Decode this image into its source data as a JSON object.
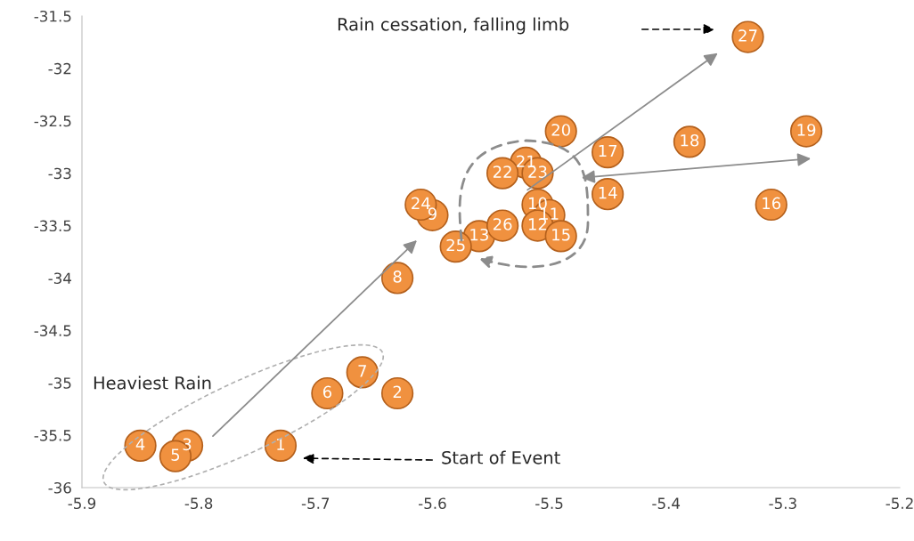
{
  "chart_data": {
    "type": "scatter",
    "x": [
      -5.73,
      -5.63,
      -5.81,
      -5.85,
      -5.82,
      -5.69,
      -5.66,
      -5.63,
      -5.6,
      -5.51,
      -5.5,
      -5.51,
      -5.56,
      -5.45,
      -5.49,
      -5.31,
      -5.45,
      -5.38,
      -5.28,
      -5.49,
      -5.52,
      -5.54,
      -5.51,
      -5.61,
      -5.58,
      -5.54,
      -5.33
    ],
    "values": [
      -35.6,
      -35.1,
      -35.6,
      -35.6,
      -35.7,
      -35.1,
      -34.9,
      -34.0,
      -33.4,
      -33.3,
      -33.4,
      -33.5,
      -33.6,
      -33.2,
      -33.6,
      -33.3,
      -32.8,
      -32.7,
      -32.6,
      -32.6,
      -32.9,
      -33.0,
      -33.0,
      -33.3,
      -33.7,
      -33.5,
      -31.7
    ],
    "color": "#f0913f",
    "marker": "circle",
    "xlim": [
      -5.9,
      -5.2
    ],
    "xticks": [
      -5.9,
      -5.8,
      -5.7,
      -5.6,
      -5.5,
      -5.4,
      -5.3,
      -5.2
    ],
    "ylim": [
      -36,
      -31.5
    ],
    "yticks": [
      -36,
      -35.5,
      -35,
      -34.5,
      -34,
      -33.5,
      -33,
      -32.5,
      -32,
      -31.5
    ],
    "grid": false,
    "annotations": [
      "Rain cessation, falling limb",
      "Start of Event",
      "Heaviest Rain",
      {
        "text": "1",
        "x": -5.73,
        "y": -35.6
      },
      {
        "text": "2",
        "x": -5.63,
        "y": -35.1
      },
      {
        "text": "3",
        "x": -5.81,
        "y": -35.6
      },
      {
        "text": "4",
        "x": -5.85,
        "y": -35.6
      },
      {
        "text": "5",
        "x": -5.82,
        "y": -35.7
      },
      {
        "text": "6",
        "x": -5.69,
        "y": -35.1
      },
      {
        "text": "7",
        "x": -5.66,
        "y": -34.9
      },
      {
        "text": "8",
        "x": -5.63,
        "y": -34.0
      },
      {
        "text": "9",
        "x": -5.6,
        "y": -33.4
      },
      {
        "text": "10",
        "x": -5.51,
        "y": -33.3
      },
      {
        "text": "11",
        "x": -5.5,
        "y": -33.4
      },
      {
        "text": "12",
        "x": -5.51,
        "y": -33.5
      },
      {
        "text": "13",
        "x": -5.56,
        "y": -33.6
      },
      {
        "text": "14",
        "x": -5.45,
        "y": -33.2
      },
      {
        "text": "15",
        "x": -5.49,
        "y": -33.6
      },
      {
        "text": "16",
        "x": -5.31,
        "y": -33.3
      },
      {
        "text": "17",
        "x": -5.45,
        "y": -32.8
      },
      {
        "text": "18",
        "x": -5.38,
        "y": -32.7
      },
      {
        "text": "19",
        "x": -5.28,
        "y": -32.6
      },
      {
        "text": "20",
        "x": -5.49,
        "y": -32.6
      },
      {
        "text": "21",
        "x": -5.52,
        "y": -32.9
      },
      {
        "text": "22",
        "x": -5.54,
        "y": -33.0
      },
      {
        "text": "23",
        "x": -5.51,
        "y": -33.0
      },
      {
        "text": "24",
        "x": -5.61,
        "y": -33.3
      },
      {
        "text": "25",
        "x": -5.58,
        "y": -33.7
      },
      {
        "text": "26",
        "x": -5.54,
        "y": -33.5
      },
      {
        "text": "27",
        "x": -5.33,
        "y": -31.7
      }
    ]
  }
}
